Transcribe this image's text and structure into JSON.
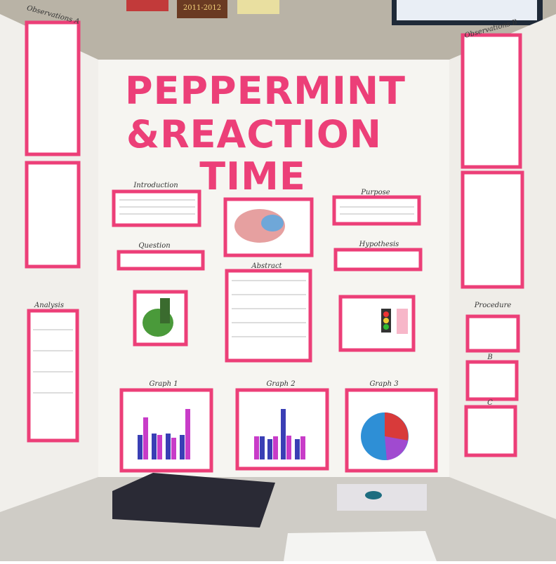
{
  "poster": "2011-2012",
  "title": [
    "PEPPERMINT",
    "&REACTION",
    "TIME"
  ],
  "labels": {
    "observations_a": "Observations A",
    "observations_b": "Observations B",
    "introduction": "Introduction",
    "question": "Question",
    "abstract": "Abstract",
    "analysis": "Analysis",
    "purpose": "Purpose",
    "hypothesis": "Hypothesis",
    "procedure": "Procedure",
    "graph_1": "Graph 1",
    "graph_2": "Graph 2",
    "graph_3": "Graph 3",
    "b": "B",
    "c": "C"
  }
}
